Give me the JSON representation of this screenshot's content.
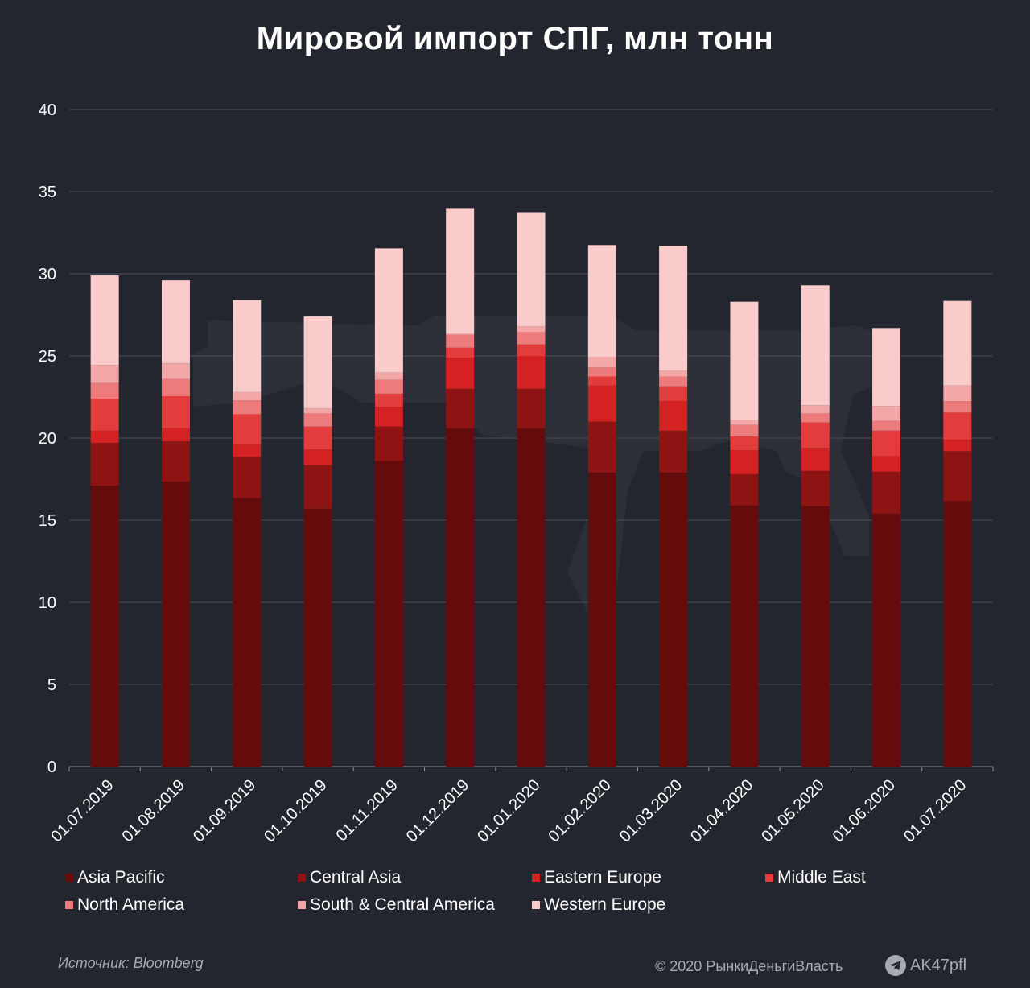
{
  "chart_data": {
    "type": "bar",
    "stacked": true,
    "title": "Мировой импорт СПГ, млн тонн",
    "ylim": [
      0,
      40
    ],
    "yticks": [
      0,
      5,
      10,
      15,
      20,
      25,
      30,
      35,
      40
    ],
    "grid": true,
    "legend_position": "bottom",
    "categories": [
      "01.07.2019",
      "01.08.2019",
      "01.09.2019",
      "01.10.2019",
      "01.11.2019",
      "01.12.2019",
      "01.01.2020",
      "01.02.2020",
      "01.03.2020",
      "01.04.2020",
      "01.05.2020",
      "01.06.2020",
      "01.07.2020"
    ],
    "series": [
      {
        "name": "Asia Pacific",
        "color": "#650b0c",
        "values": [
          17.1,
          17.35,
          16.35,
          15.7,
          18.6,
          20.6,
          20.6,
          17.9,
          17.9,
          15.9,
          15.85,
          15.4,
          16.15
        ]
      },
      {
        "name": "Central Asia",
        "color": "#8e1414",
        "values": [
          2.6,
          2.45,
          2.5,
          2.65,
          2.1,
          2.4,
          2.4,
          3.1,
          2.55,
          1.9,
          2.15,
          2.55,
          3.05
        ]
      },
      {
        "name": "Eastern Europe",
        "color": "#d42121",
        "values": [
          0.75,
          0.8,
          0.75,
          0.95,
          1.2,
          1.9,
          2.0,
          2.2,
          1.8,
          1.45,
          1.4,
          0.95,
          0.7
        ]
      },
      {
        "name": "Middle East",
        "color": "#e23c3c",
        "values": [
          1.95,
          1.95,
          1.85,
          1.4,
          0.8,
          0.6,
          0.7,
          0.55,
          0.9,
          0.85,
          1.55,
          1.55,
          1.65
        ]
      },
      {
        "name": "North America",
        "color": "#ee7b7b",
        "values": [
          0.95,
          1.05,
          0.85,
          0.8,
          0.85,
          0.8,
          0.75,
          0.55,
          0.6,
          0.7,
          0.55,
          0.6,
          0.7
        ]
      },
      {
        "name": "South & Central America",
        "color": "#f3a7a7",
        "values": [
          1.1,
          0.95,
          0.5,
          0.3,
          0.45,
          0.05,
          0.35,
          0.65,
          0.35,
          0.3,
          0.5,
          0.9,
          0.95
        ]
      },
      {
        "name": "Western Europe",
        "color": "#f9cbcb",
        "values": [
          5.45,
          5.05,
          5.6,
          5.6,
          7.55,
          7.65,
          6.95,
          6.8,
          7.6,
          7.2,
          7.3,
          4.75,
          5.15
        ]
      }
    ]
  },
  "footer": {
    "source": "Источник: Bloomberg",
    "copyright": "© 2020  РынкиДеньгиВласть",
    "channel": "AK47pfl"
  },
  "icons": {
    "telegram": "telegram-icon",
    "watermark": "rifle-watermark"
  }
}
